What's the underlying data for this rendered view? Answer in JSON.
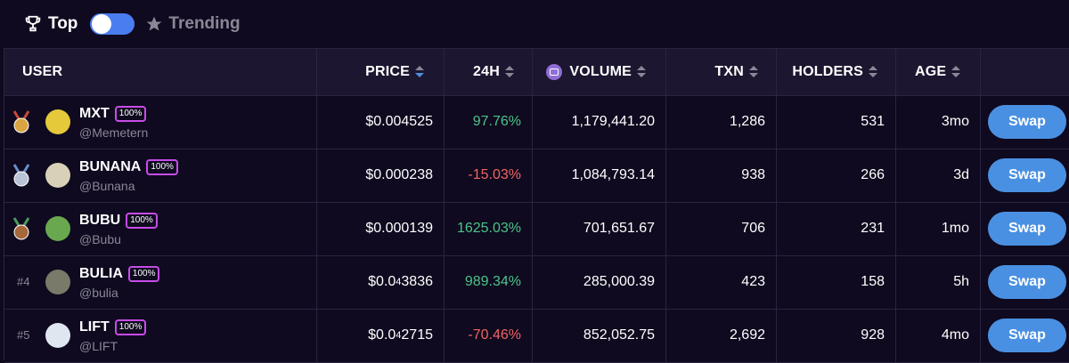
{
  "toggle": {
    "left_label": "Top",
    "right_label": "Trending",
    "on": true
  },
  "columns": {
    "user": "USER",
    "price": "PRICE",
    "change": "24H",
    "volume": "VOLUME",
    "txn": "TXN",
    "holders": "HOLDERS",
    "age": "AGE"
  },
  "rows": [
    {
      "rank": "#1",
      "name": "MXT",
      "badge": "100%",
      "handle": "@Memetern",
      "price_main": "$0.004525",
      "price_sub": "",
      "price_tail": "",
      "change": "97.76%",
      "change_dir": "up",
      "volume": "1,179,441.20",
      "txn": "1,286",
      "holders": "531",
      "age": "3mo",
      "action": "Swap",
      "medal": "gold",
      "avatar_color": "#e6c93a"
    },
    {
      "rank": "#2",
      "name": "BUNANA",
      "badge": "100%",
      "handle": "@Bunana",
      "price_main": "$0.000238",
      "price_sub": "",
      "price_tail": "",
      "change": "-15.03%",
      "change_dir": "down",
      "volume": "1,084,793.14",
      "txn": "938",
      "holders": "266",
      "age": "3d",
      "action": "Swap",
      "medal": "silver",
      "avatar_color": "#d9d0b8"
    },
    {
      "rank": "#3",
      "name": "BUBU",
      "badge": "100%",
      "handle": "@Bubu",
      "price_main": "$0.000139",
      "price_sub": "",
      "price_tail": "",
      "change": "1625.03%",
      "change_dir": "up",
      "volume": "701,651.67",
      "txn": "706",
      "holders": "231",
      "age": "1mo",
      "action": "Swap",
      "medal": "bronze",
      "avatar_color": "#6aa84f"
    },
    {
      "rank": "#4",
      "name": "BULIA",
      "badge": "100%",
      "handle": "@bulia",
      "price_main": "$0.0",
      "price_sub": "4",
      "price_tail": "3836",
      "change": "989.34%",
      "change_dir": "up",
      "volume": "285,000.39",
      "txn": "423",
      "holders": "158",
      "age": "5h",
      "action": "Swap",
      "medal": "",
      "avatar_color": "#7a7a6a"
    },
    {
      "rank": "#5",
      "name": "LIFT",
      "badge": "100%",
      "handle": "@LIFT",
      "price_main": "$0.0",
      "price_sub": "4",
      "price_tail": "2715",
      "change": "-70.46%",
      "change_dir": "down",
      "volume": "852,052.75",
      "txn": "2,692",
      "holders": "928",
      "age": "4mo",
      "action": "Swap",
      "medal": "",
      "avatar_color": "#dfe6f0"
    }
  ],
  "icons": {
    "trophy": "trophy-icon",
    "trend": "star-icon",
    "volume": "volume-icon"
  },
  "colors": {
    "positive": "#4cc38a",
    "negative": "#f06464",
    "accent": "#4a90e2",
    "badge_border": "#c84ce8"
  }
}
